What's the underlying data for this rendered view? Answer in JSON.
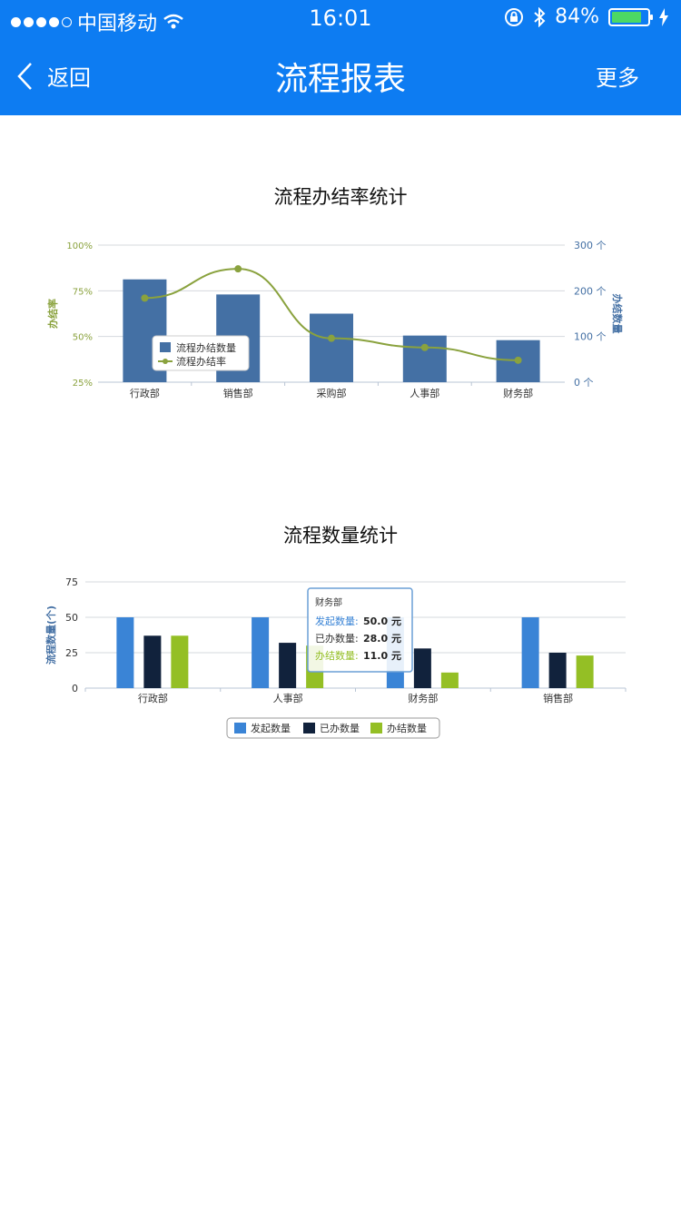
{
  "status_bar": {
    "carrier": "中国移动",
    "time": "16:01",
    "battery": "84%",
    "battery_level": 0.84
  },
  "nav": {
    "back_label": "返回",
    "title": "流程报表",
    "more_label": "更多"
  },
  "colors": {
    "nav_bg": "#0d7cf2",
    "bar1": "#4470a4",
    "line1": "#8aa23e",
    "blue": "#3a84d6",
    "navy": "#11223c",
    "green": "#94bf25"
  },
  "chart_data": [
    {
      "type": "bar+line",
      "title": "流程办结率统计",
      "categories": [
        "行政部",
        "销售部",
        "采购部",
        "人事部",
        "财务部"
      ],
      "ylabel_left": "办结率",
      "ylabel_right": "办结数量",
      "y_left_ticks": [
        "100%",
        "75%",
        "50%",
        "25%"
      ],
      "y_left_range": [
        25,
        100
      ],
      "y_right_ticks": [
        "300 个",
        "200 个",
        "100 个",
        "0 个"
      ],
      "y_right_range": [
        0,
        300
      ],
      "series": [
        {
          "name": "流程办结数量",
          "type": "bar",
          "axis": "right",
          "values": [
            225,
            192,
            150,
            102,
            92
          ]
        },
        {
          "name": "流程办结率",
          "type": "line",
          "axis": "left",
          "values": [
            71,
            87,
            49,
            44,
            37
          ]
        }
      ],
      "legend_position": "inside-left"
    },
    {
      "type": "bar",
      "title": "流程数量统计",
      "categories": [
        "行政部",
        "人事部",
        "财务部",
        "销售部"
      ],
      "ylabel": "流程数量(个)",
      "y_ticks": [
        "75",
        "50",
        "25",
        "0"
      ],
      "ylim": [
        0,
        75
      ],
      "series": [
        {
          "name": "发起数量",
          "values": [
            50,
            50,
            50,
            50
          ]
        },
        {
          "name": "已办数量",
          "values": [
            37,
            32,
            28,
            25
          ]
        },
        {
          "name": "办结数量",
          "values": [
            37,
            30,
            11,
            23
          ]
        }
      ],
      "legend_position": "bottom-center",
      "tooltip": {
        "category": "财务部",
        "rows": [
          {
            "label": "发起数量:",
            "value": "50.0 元"
          },
          {
            "label": "已办数量:",
            "value": "28.0 元"
          },
          {
            "label": "办结数量:",
            "value": "11.0 元"
          }
        ]
      }
    }
  ]
}
